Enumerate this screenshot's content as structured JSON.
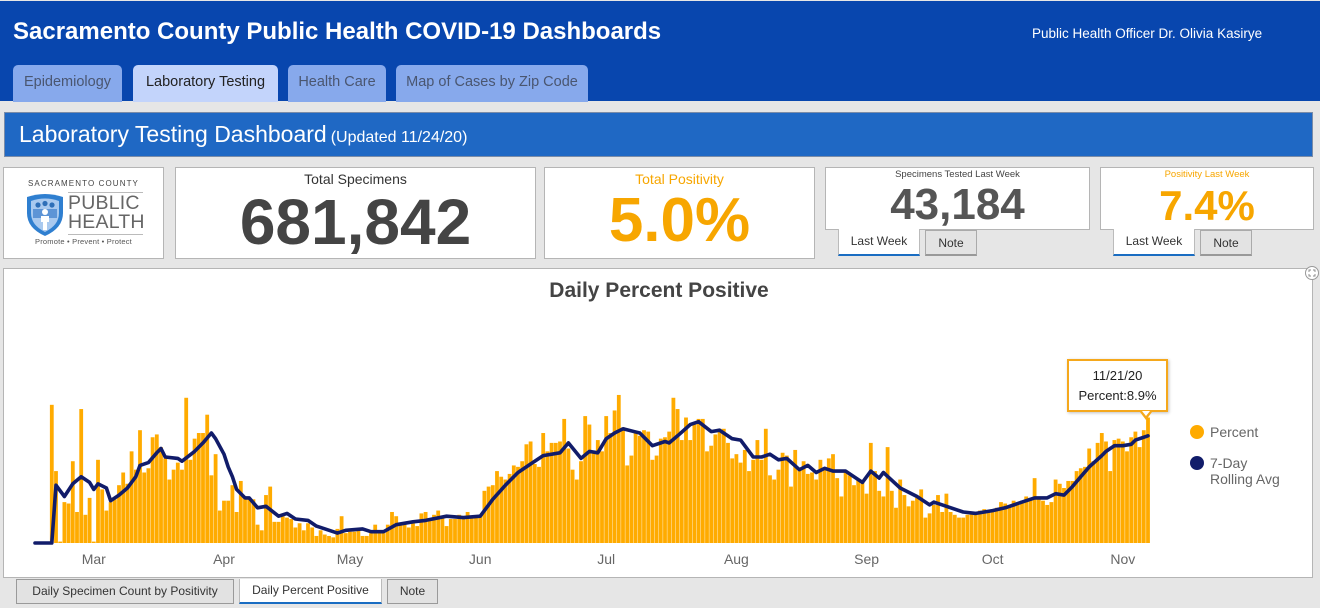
{
  "header": {
    "title": "Sacramento County Public Health COVID-19 Dashboards",
    "officer": "Public Health Officer Dr. Olivia Kasirye",
    "tabs": [
      {
        "label": "Epidemiology",
        "active": false
      },
      {
        "label": "Laboratory Testing",
        "active": true
      },
      {
        "label": "Health Care",
        "active": false
      },
      {
        "label": "Map of Cases by Zip Code",
        "active": false
      }
    ]
  },
  "dashboard": {
    "title": "Laboratory Testing Dashboard",
    "updated": "(Updated 11/24/20)"
  },
  "logo": {
    "county": "SACRAMENTO COUNTY",
    "line1": "PUBLIC",
    "line2": "HEALTH",
    "tagline": "Promote • Prevent • Protect"
  },
  "kpis": {
    "total_specimens": {
      "label": "Total Specimens",
      "value": "681,842"
    },
    "total_positivity": {
      "label": "Total Positivity",
      "value": "5.0%"
    },
    "specimens_last_week": {
      "label": "Specimens Tested Last Week",
      "value": "43,184",
      "tabs": [
        "Last Week",
        "Note"
      ]
    },
    "positivity_last_week": {
      "label": "Positivity Last Week",
      "value": "7.4%",
      "tabs": [
        "Last Week",
        "Note"
      ]
    }
  },
  "chart_tabs": [
    {
      "label": "Daily Specimen Count by Positivity",
      "active": false
    },
    {
      "label": "Daily Percent Positive",
      "active": true
    },
    {
      "label": "Note",
      "active": false
    }
  ],
  "colors": {
    "header_blue": "#0846ae",
    "title_bar_blue": "#1f68c4",
    "accent_orange": "#f7a600",
    "bar": "#ffab00",
    "line": "#111c6a"
  },
  "chart_data": {
    "type": "bar",
    "title": "Daily Percent Positive",
    "xlabel": "",
    "ylabel": "",
    "x_range": [
      "3/1/20",
      "11/21/20"
    ],
    "ylim": [
      0,
      12
    ],
    "grid": false,
    "legend_position": "right",
    "x_ticks": [
      {
        "label": "Mar",
        "date": "3/15/20"
      },
      {
        "label": "Apr",
        "date": "4/15/20"
      },
      {
        "label": "May",
        "date": "5/15/20"
      },
      {
        "label": "Jun",
        "date": "6/15/20"
      },
      {
        "label": "Jul",
        "date": "7/15/20"
      },
      {
        "label": "Aug",
        "date": "8/15/20"
      },
      {
        "label": "Sep",
        "date": "9/15/20"
      },
      {
        "label": "Oct",
        "date": "10/15/20"
      },
      {
        "label": "Nov",
        "date": "11/15/20"
      }
    ],
    "legend": [
      {
        "label": "Percent",
        "color": "#ffab00"
      },
      {
        "label": "7-Day Rolling Avg",
        "color": "#111c6a"
      }
    ],
    "tooltip": {
      "date": "11/21/20",
      "label": "Percent:8.9%"
    },
    "series": [
      {
        "name": "Percent",
        "type": "bar",
        "start_date": "3/1/20",
        "unit": "%",
        "values": [
          0,
          0,
          0,
          0,
          9.8,
          5.1,
          0.1,
          2.9,
          2.8,
          5.8,
          2.2,
          9.5,
          2.0,
          3.2,
          0.1,
          5.9,
          3.8,
          2.3,
          2.9,
          3.1,
          4.1,
          5.0,
          4.2,
          6.5,
          5.2,
          8.0,
          5.0,
          5.3,
          7.5,
          7.7,
          6.8,
          6.0,
          4.5,
          5.2,
          5.7,
          5.2,
          10.3,
          5.9,
          7.4,
          7.8,
          7.8,
          9.1,
          4.8,
          6.3,
          2.3,
          3.0,
          3.0,
          4.1,
          2.2,
          4.4,
          3.3,
          3.2,
          3.1,
          1.3,
          0.9,
          3.4,
          4.0,
          1.5,
          1.5,
          1.9,
          1.8,
          1.7,
          1.1,
          1.4,
          0.9,
          1.4,
          1.1,
          0.5,
          0.9,
          0.6,
          0.5,
          0.4,
          1.0,
          1.9,
          0.7,
          0.8,
          0.8,
          0.9,
          0.5,
          0.5,
          0.7,
          1.3,
          0.7,
          0.7,
          1.3,
          2.2,
          1.9,
          1.3,
          1.3,
          1.1,
          1.4,
          1.2,
          2.1,
          2.2,
          1.6,
          2.0,
          2.3,
          1.9,
          1.2,
          1.7,
          1.7,
          2.0,
          1.8,
          2.2,
          1.9,
          1.9,
          1.9,
          3.7,
          4.0,
          4.1,
          5.1,
          4.7,
          4.5,
          4.9,
          5.5,
          5.4,
          5.8,
          7.0,
          7.2,
          5.6,
          5.4,
          7.8,
          6.5,
          7.1,
          7.1,
          7.2,
          8.8,
          6.7,
          5.2,
          4.5,
          5.8,
          9.0,
          8.4,
          6.5,
          7.3,
          6.5,
          9.0,
          7.8,
          9.4,
          10.5,
          8.2,
          5.5,
          6.2,
          7.9,
          7.6,
          8.0,
          7.9,
          5.9,
          6.2,
          7.4,
          7.5,
          7.9,
          10.3,
          9.5,
          7.3,
          8.9,
          7.3,
          8.4,
          8.8,
          8.8,
          6.5,
          6.9,
          7.7,
          8.1,
          8.1,
          7.1,
          6.0,
          6.3,
          5.7,
          6.6,
          5.1,
          5.9,
          7.3,
          5.9,
          8.1,
          4.8,
          4.5,
          5.2,
          6.4,
          6.2,
          4.0,
          6.6,
          5.2,
          5.8,
          4.9,
          5.0,
          4.5,
          5.9,
          5.3,
          6.0,
          6.3,
          4.6,
          3.3,
          5.0,
          4.8,
          4.1,
          4.5,
          4.4,
          3.5,
          7.1,
          5.1,
          3.7,
          3.3,
          6.8,
          3.7,
          2.5,
          4.5,
          3.4,
          2.6,
          3.0,
          3.2,
          3.8,
          1.8,
          2.1,
          2.7,
          3.4,
          2.2,
          3.5,
          2.2,
          2.0,
          1.8,
          1.8,
          2.0,
          2.1,
          2.2,
          2.3,
          2.4,
          2.3,
          2.4,
          2.5,
          2.9,
          2.8,
          2.6,
          3.0,
          2.7,
          3.0,
          3.3,
          3.2,
          4.6,
          3.2,
          3.0,
          2.7,
          2.9,
          4.5,
          4.2,
          3.9,
          4.4,
          4.4,
          5.1,
          5.3,
          5.4,
          6.7,
          5.8,
          7.1,
          7.8,
          7.2,
          5.1,
          7.3,
          7.4,
          7.2,
          6.5,
          7.5,
          7.9,
          6.8,
          8.0,
          8.9
        ]
      },
      {
        "name": "7-Day Rolling Avg",
        "type": "line",
        "unit": "%",
        "points": [
          [
            "3/1/20",
            0
          ],
          [
            "3/5/20",
            0
          ],
          [
            "3/6/20",
            4.1
          ],
          [
            "3/8/20",
            3.3
          ],
          [
            "3/10/20",
            4.2
          ],
          [
            "3/12/20",
            4.7
          ],
          [
            "3/14/20",
            4.3
          ],
          [
            "3/15/20",
            3.8
          ],
          [
            "3/16/20",
            4.2
          ],
          [
            "3/18/20",
            3.9
          ],
          [
            "3/19/20",
            3.0
          ],
          [
            "3/21/20",
            3.4
          ],
          [
            "3/23/20",
            3.9
          ],
          [
            "3/25/20",
            4.7
          ],
          [
            "3/26/20",
            5.5
          ],
          [
            "3/28/20",
            5.7
          ],
          [
            "3/30/20",
            6.4
          ],
          [
            "3/31/20",
            6.7
          ],
          [
            "4/1/20",
            6.1
          ],
          [
            "4/4/20",
            6.0
          ],
          [
            "4/5/20",
            5.8
          ],
          [
            "4/8/20",
            6.5
          ],
          [
            "4/10/20",
            7.1
          ],
          [
            "4/12/20",
            7.8
          ],
          [
            "4/13/20",
            7.4
          ],
          [
            "4/15/20",
            6.3
          ],
          [
            "4/16/20",
            5.4
          ],
          [
            "4/17/20",
            4.7
          ],
          [
            "4/18/20",
            3.8
          ],
          [
            "4/20/20",
            3.2
          ],
          [
            "4/21/20",
            3.2
          ],
          [
            "4/23/20",
            2.5
          ],
          [
            "4/25/20",
            2.6
          ],
          [
            "4/28/20",
            1.9
          ],
          [
            "4/30/20",
            2.1
          ],
          [
            "5/2/20",
            1.7
          ],
          [
            "5/5/20",
            1.6
          ],
          [
            "5/7/20",
            1.2
          ],
          [
            "5/12/20",
            0.7
          ],
          [
            "5/14/20",
            0.9
          ],
          [
            "5/18/20",
            1.0
          ],
          [
            "5/20/20",
            0.8
          ],
          [
            "5/23/20",
            0.8
          ],
          [
            "5/26/20",
            1.3
          ],
          [
            "5/30/20",
            1.5
          ],
          [
            "6/2/20",
            1.6
          ],
          [
            "6/7/20",
            1.9
          ],
          [
            "6/11/20",
            1.8
          ],
          [
            "6/15/20",
            1.9
          ],
          [
            "6/18/20",
            3.1
          ],
          [
            "6/21/20",
            4.1
          ],
          [
            "6/24/20",
            5.0
          ],
          [
            "6/27/20",
            5.6
          ],
          [
            "6/30/20",
            6.2
          ],
          [
            "7/4/20",
            6.4
          ],
          [
            "7/6/20",
            7.1
          ],
          [
            "7/9/20",
            6.0
          ],
          [
            "7/11/20",
            6.5
          ],
          [
            "7/13/20",
            6.4
          ],
          [
            "7/15/20",
            7.4
          ],
          [
            "7/17/20",
            7.8
          ],
          [
            "7/19/20",
            8.1
          ],
          [
            "7/23/20",
            7.8
          ],
          [
            "7/26/20",
            6.9
          ],
          [
            "7/29/20",
            7.2
          ],
          [
            "7/30/20",
            7.1
          ],
          [
            "8/1/20",
            7.6
          ],
          [
            "8/4/20",
            8.4
          ],
          [
            "8/6/20",
            8.6
          ],
          [
            "8/9/20",
            7.9
          ],
          [
            "8/11/20",
            8.0
          ],
          [
            "8/14/20",
            7.4
          ],
          [
            "8/16/20",
            7.3
          ],
          [
            "8/19/20",
            6.1
          ],
          [
            "8/21/20",
            6.1
          ],
          [
            "8/23/20",
            6.3
          ],
          [
            "8/25/20",
            5.9
          ],
          [
            "8/27/20",
            6.0
          ],
          [
            "8/30/20",
            5.2
          ],
          [
            "9/1/20",
            5.5
          ],
          [
            "9/3/20",
            5.0
          ],
          [
            "9/5/20",
            5.3
          ],
          [
            "9/7/20",
            5.1
          ],
          [
            "9/10/20",
            5.1
          ],
          [
            "9/12/20",
            4.7
          ],
          [
            "9/14/20",
            4.3
          ],
          [
            "9/16/20",
            5.1
          ],
          [
            "9/18/20",
            4.6
          ],
          [
            "9/19/20",
            5.0
          ],
          [
            "9/23/20",
            3.9
          ],
          [
            "9/27/20",
            3.3
          ],
          [
            "9/30/20",
            2.7
          ],
          [
            "10/1/20",
            2.9
          ],
          [
            "10/4/20",
            2.6
          ],
          [
            "10/8/20",
            2.2
          ],
          [
            "10/11/20",
            2.1
          ],
          [
            "10/15/20",
            2.3
          ],
          [
            "10/18/20",
            2.5
          ],
          [
            "10/22/20",
            2.9
          ],
          [
            "10/25/20",
            3.2
          ],
          [
            "10/28/20",
            3.2
          ],
          [
            "10/30/20",
            3.5
          ],
          [
            "11/1/20",
            3.4
          ],
          [
            "11/3/20",
            4.0
          ],
          [
            "11/5/20",
            4.7
          ],
          [
            "11/7/20",
            5.4
          ],
          [
            "11/10/20",
            6.2
          ],
          [
            "11/11/20",
            6.5
          ],
          [
            "11/13/20",
            6.9
          ],
          [
            "11/15/20",
            6.9
          ],
          [
            "11/17/20",
            7.0
          ],
          [
            "11/18/20",
            7.3
          ],
          [
            "11/21/20",
            7.6
          ]
        ]
      }
    ]
  }
}
